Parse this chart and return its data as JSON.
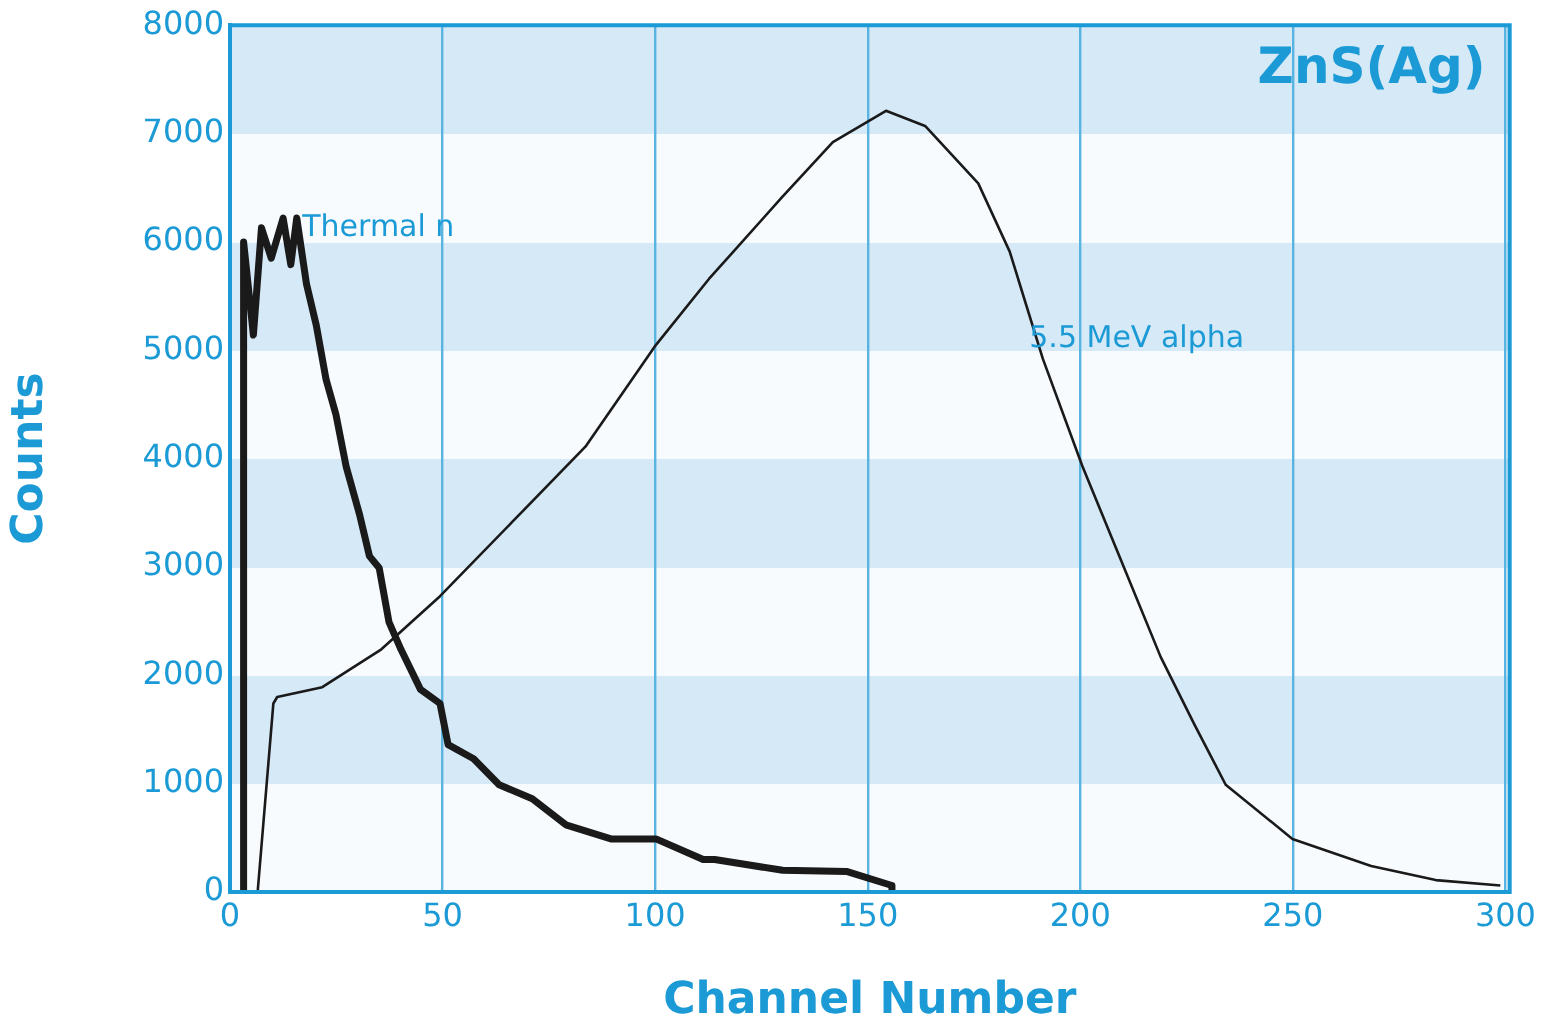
{
  "chart_data": {
    "type": "line",
    "title": "ZnS(Ag)",
    "xlabel": "Channel Number",
    "ylabel": "Counts",
    "xlim": [
      0,
      301
    ],
    "xticks": [
      0,
      50,
      100,
      150,
      200,
      250,
      300
    ],
    "ylim": [
      0,
      8000
    ],
    "yticks": [
      0,
      1000,
      2000,
      3000,
      4000,
      5000,
      6000,
      7000,
      8000
    ],
    "grid": "x",
    "legend": false,
    "marker": "none",
    "line_style": "solid",
    "series": [
      {
        "color": "#1a1a1a",
        "x": [
          3.2,
          3.2,
          5.5,
          7.4,
          9.7,
          12.5,
          14.3,
          15.7,
          18,
          20.3,
          22.6,
          24.9,
          27.3,
          30.5,
          32.8,
          35.1,
          37.4,
          40.2,
          44.8,
          49.4,
          51.3,
          57.3,
          63.3,
          71.1,
          79,
          89.6,
          100.2,
          111.3,
          114,
          130,
          145,
          155.7,
          155.7
        ],
        "values": [
          0,
          6000,
          5140,
          6130,
          5850,
          6220,
          5790,
          6220,
          5610,
          5230,
          4730,
          4410,
          3930,
          3480,
          3100,
          2990,
          2490,
          2240,
          1870,
          1740,
          1360,
          1230,
          990,
          860,
          620,
          490,
          490,
          300,
          300,
          200,
          190,
          60,
          0
        ]
      },
      {
        "color": "#1a1a1a",
        "x": [
          6.5,
          10.2,
          11.1,
          21.7,
          35.6,
          49.4,
          66.5,
          83.6,
          100.2,
          112.7,
          129.8,
          141.8,
          154.3,
          163.5,
          176,
          183.4,
          191.2,
          200.5,
          209.7,
          218.9,
          226.8,
          234.2,
          249.9,
          268.4,
          283.6,
          298.8
        ],
        "values": [
          0,
          1740,
          1800,
          1890,
          2240,
          2730,
          3420,
          4110,
          5050,
          5660,
          6410,
          6920,
          7210,
          7070,
          6540,
          5910,
          4920,
          3930,
          3050,
          2170,
          1550,
          990,
          490,
          240,
          110,
          60
        ]
      }
    ],
    "annotations": [
      {
        "text": "Thermal n",
        "x": 17,
        "y": 6130
      },
      {
        "text": "5.5 MeV alpha",
        "x": 188,
        "y": 5100
      }
    ]
  }
}
